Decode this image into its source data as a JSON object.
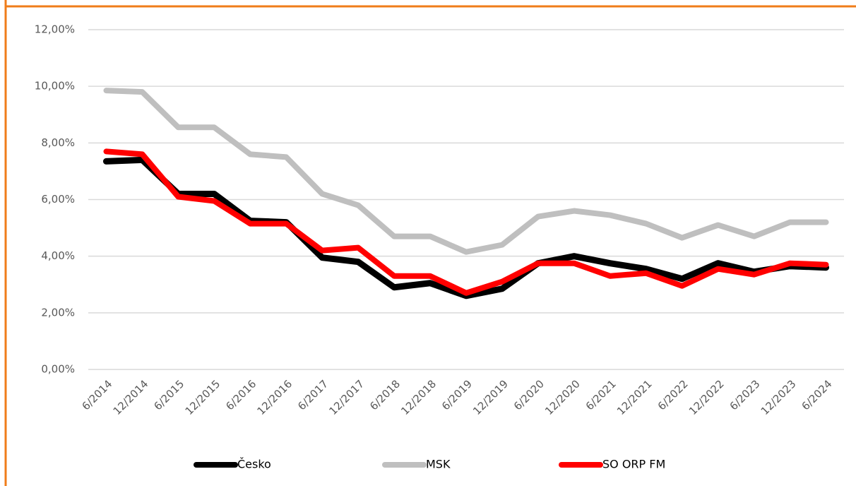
{
  "chart_data": {
    "type": "line",
    "categories": [
      "6/2014",
      "12/2014",
      "6/2015",
      "12/2015",
      "6/2016",
      "12/2016",
      "6/2017",
      "12/2017",
      "6/2018",
      "12/2018",
      "6/2019",
      "12/2019",
      "6/2020",
      "12/2020",
      "6/2021",
      "12/2021",
      "6/2022",
      "12/2022",
      "6/2023",
      "12/2023",
      "6/2024"
    ],
    "series": [
      {
        "name": "Česko",
        "color": "#000000",
        "values": [
          7.35,
          7.4,
          6.2,
          6.2,
          5.25,
          5.2,
          3.95,
          3.8,
          2.9,
          3.05,
          2.6,
          2.85,
          3.75,
          4.0,
          3.75,
          3.55,
          3.2,
          3.75,
          3.45,
          3.65,
          3.6
        ]
      },
      {
        "name": "MSK",
        "color": "#bfbfbf",
        "values": [
          9.85,
          9.8,
          8.55,
          8.55,
          7.6,
          7.5,
          6.2,
          5.8,
          4.7,
          4.7,
          4.15,
          4.4,
          5.4,
          5.6,
          5.45,
          5.15,
          4.65,
          5.1,
          4.7,
          5.2,
          5.2
        ]
      },
      {
        "name": "SO ORP FM",
        "color": "#ff0000",
        "values": [
          7.7,
          7.6,
          6.1,
          5.95,
          5.15,
          5.15,
          4.2,
          4.3,
          3.3,
          3.3,
          2.7,
          3.1,
          3.75,
          3.75,
          3.3,
          3.4,
          2.95,
          3.55,
          3.35,
          3.75,
          3.7
        ]
      }
    ],
    "ylim": [
      0,
      12
    ],
    "yticks": [
      {
        "value": 0,
        "label": "0,00%"
      },
      {
        "value": 2,
        "label": "2,00%"
      },
      {
        "value": 4,
        "label": "4,00%"
      },
      {
        "value": 6,
        "label": "6,00%"
      },
      {
        "value": 8,
        "label": "8,00%"
      },
      {
        "value": 10,
        "label": "10,00%"
      },
      {
        "value": 12,
        "label": "12,00%"
      }
    ],
    "grid": true,
    "legend": "bottom"
  }
}
